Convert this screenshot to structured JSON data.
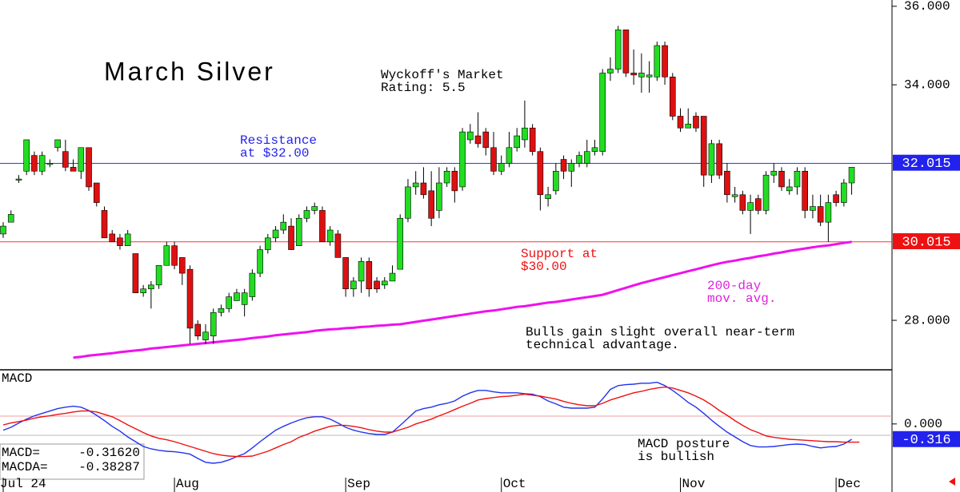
{
  "chart_data": [
    {
      "type": "candlestick",
      "categories": [
        "Jul 24",
        null,
        null,
        null,
        null,
        null,
        null,
        null,
        null,
        null,
        null,
        null,
        null,
        null,
        null,
        null,
        null,
        null,
        null,
        null,
        null,
        null,
        "Aug",
        null,
        null,
        null,
        null,
        null,
        null,
        null,
        null,
        null,
        null,
        null,
        null,
        null,
        null,
        null,
        null,
        null,
        null,
        null,
        null,
        null,
        "Sep",
        null,
        null,
        null,
        null,
        null,
        null,
        null,
        null,
        null,
        null,
        null,
        null,
        null,
        null,
        null,
        null,
        null,
        null,
        null,
        "Oct",
        null,
        null,
        null,
        null,
        null,
        null,
        null,
        null,
        null,
        null,
        null,
        null,
        null,
        null,
        null,
        null,
        null,
        null,
        null,
        null,
        null,
        null,
        "Nov",
        null,
        null,
        null,
        null,
        null,
        null,
        null,
        null,
        null,
        null,
        null,
        null,
        null,
        null,
        null,
        null,
        null,
        null,
        null,
        "Dec",
        null,
        null
      ],
      "ohlc": [
        [
          30.2,
          30.5,
          30.1,
          30.4
        ],
        [
          30.5,
          30.8,
          30.5,
          30.7
        ],
        [
          31.6,
          31.7,
          31.5,
          31.6
        ],
        [
          31.8,
          32.6,
          31.7,
          32.6
        ],
        [
          32.2,
          32.3,
          31.7,
          31.8
        ],
        [
          31.8,
          32.3,
          31.7,
          32.2
        ],
        [
          32.0,
          32.1,
          31.9,
          32.0
        ],
        [
          32.4,
          32.6,
          32.3,
          32.6
        ],
        [
          32.3,
          32.6,
          31.8,
          31.9
        ],
        [
          31.9,
          32.1,
          31.8,
          31.8
        ],
        [
          31.8,
          32.4,
          31.6,
          32.4
        ],
        [
          32.4,
          32.4,
          31.3,
          31.4
        ],
        [
          31.5,
          31.5,
          30.9,
          31.0
        ],
        [
          30.8,
          30.9,
          30.1,
          30.1
        ],
        [
          30.2,
          30.3,
          30.0,
          30.0
        ],
        [
          30.1,
          30.2,
          29.8,
          29.9
        ],
        [
          29.9,
          30.3,
          29.9,
          30.2
        ],
        [
          29.7,
          29.7,
          28.7,
          28.7
        ],
        [
          28.7,
          28.9,
          28.6,
          28.8
        ],
        [
          28.8,
          29.0,
          28.3,
          28.9
        ],
        [
          28.9,
          29.4,
          28.8,
          29.4
        ],
        [
          29.4,
          30.0,
          29.4,
          29.9
        ],
        [
          29.9,
          30.0,
          29.3,
          29.4
        ],
        [
          29.6,
          29.6,
          28.9,
          29.2
        ],
        [
          29.3,
          29.4,
          27.4,
          27.8
        ],
        [
          27.9,
          28.0,
          27.5,
          27.6
        ],
        [
          27.5,
          27.9,
          27.4,
          27.7
        ],
        [
          27.6,
          28.3,
          27.4,
          28.2
        ],
        [
          28.2,
          28.4,
          28.1,
          28.3
        ],
        [
          28.3,
          28.7,
          28.2,
          28.6
        ],
        [
          28.5,
          28.8,
          28.5,
          28.7
        ],
        [
          28.4,
          28.8,
          28.1,
          28.7
        ],
        [
          28.6,
          29.3,
          28.5,
          29.2
        ],
        [
          29.2,
          29.9,
          29.1,
          29.8
        ],
        [
          29.8,
          30.2,
          29.7,
          30.1
        ],
        [
          30.1,
          30.4,
          30.0,
          30.3
        ],
        [
          30.3,
          30.7,
          30.2,
          30.5
        ],
        [
          30.4,
          30.6,
          29.8,
          29.8
        ],
        [
          29.9,
          30.7,
          29.9,
          30.6
        ],
        [
          30.6,
          30.9,
          30.5,
          30.8
        ],
        [
          30.8,
          31.0,
          30.7,
          30.9
        ],
        [
          30.8,
          30.9,
          30.0,
          30.0
        ],
        [
          30.0,
          30.4,
          29.9,
          30.3
        ],
        [
          30.2,
          30.3,
          29.6,
          29.6
        ],
        [
          29.6,
          29.6,
          28.6,
          28.8
        ],
        [
          28.8,
          29.1,
          28.6,
          29.0
        ],
        [
          29.0,
          29.6,
          28.7,
          29.5
        ],
        [
          29.5,
          29.6,
          28.6,
          28.8
        ],
        [
          29.0,
          29.1,
          28.7,
          28.8
        ],
        [
          28.9,
          29.1,
          28.8,
          29.0
        ],
        [
          29.0,
          29.4,
          29.0,
          29.2
        ],
        [
          29.3,
          30.7,
          29.3,
          30.6
        ],
        [
          30.6,
          31.6,
          30.5,
          31.4
        ],
        [
          31.4,
          31.8,
          31.2,
          31.5
        ],
        [
          31.5,
          31.9,
          31.1,
          31.2
        ],
        [
          31.3,
          31.8,
          30.4,
          30.6
        ],
        [
          30.8,
          31.9,
          30.6,
          31.5
        ],
        [
          31.5,
          31.9,
          31.4,
          31.8
        ],
        [
          31.8,
          31.9,
          31.0,
          31.3
        ],
        [
          31.4,
          32.9,
          31.3,
          32.8
        ],
        [
          32.6,
          33.0,
          32.5,
          32.8
        ],
        [
          32.7,
          33.3,
          32.4,
          32.5
        ],
        [
          32.8,
          32.9,
          32.2,
          32.4
        ],
        [
          32.4,
          32.8,
          31.7,
          31.8
        ],
        [
          31.8,
          32.2,
          31.7,
          32.0
        ],
        [
          32.0,
          32.8,
          31.9,
          32.4
        ],
        [
          32.4,
          32.9,
          32.3,
          32.7
        ],
        [
          32.6,
          33.6,
          32.4,
          32.9
        ],
        [
          32.9,
          33.0,
          32.2,
          32.3
        ],
        [
          32.3,
          32.4,
          30.8,
          31.2
        ],
        [
          31.1,
          31.4,
          30.9,
          31.2
        ],
        [
          31.3,
          32.0,
          31.2,
          31.8
        ],
        [
          32.1,
          32.2,
          31.6,
          31.8
        ],
        [
          31.8,
          32.1,
          31.4,
          32.0
        ],
        [
          32.0,
          32.3,
          31.9,
          32.2
        ],
        [
          32.0,
          32.6,
          31.9,
          32.3
        ],
        [
          32.3,
          32.6,
          32.2,
          32.4
        ],
        [
          32.3,
          34.4,
          32.2,
          34.3
        ],
        [
          34.3,
          34.7,
          34.1,
          34.4
        ],
        [
          34.4,
          35.5,
          34.3,
          35.4
        ],
        [
          35.4,
          35.4,
          34.2,
          34.3
        ],
        [
          34.3,
          34.9,
          34.0,
          34.25
        ],
        [
          34.2,
          34.8,
          33.8,
          34.3
        ],
        [
          34.2,
          34.6,
          33.8,
          34.25
        ],
        [
          34.2,
          35.1,
          34.1,
          35.0
        ],
        [
          35.0,
          35.1,
          34.0,
          34.2
        ],
        [
          34.2,
          34.3,
          33.1,
          33.2
        ],
        [
          33.2,
          33.4,
          32.8,
          32.9
        ],
        [
          32.9,
          33.4,
          32.9,
          33.0
        ],
        [
          33.2,
          33.3,
          32.8,
          32.9
        ],
        [
          33.2,
          33.2,
          31.4,
          31.7
        ],
        [
          31.7,
          32.6,
          31.5,
          32.5
        ],
        [
          32.5,
          32.6,
          31.6,
          31.7
        ],
        [
          31.8,
          32.0,
          31.0,
          31.2
        ],
        [
          31.15,
          31.4,
          31.0,
          31.2
        ],
        [
          31.2,
          31.3,
          30.7,
          30.8
        ],
        [
          30.8,
          31.2,
          30.2,
          31.0
        ],
        [
          31.1,
          31.2,
          30.7,
          30.8
        ],
        [
          30.8,
          31.8,
          30.7,
          31.7
        ],
        [
          31.7,
          32.0,
          31.5,
          31.8
        ],
        [
          31.8,
          31.9,
          31.3,
          31.4
        ],
        [
          31.3,
          31.6,
          31.2,
          31.4
        ],
        [
          31.4,
          31.9,
          31.2,
          31.8
        ],
        [
          31.8,
          31.9,
          30.6,
          30.8
        ],
        [
          30.8,
          31.2,
          30.6,
          30.9
        ],
        [
          30.9,
          31.2,
          30.4,
          30.5
        ],
        [
          30.5,
          31.2,
          30.0,
          31.0
        ],
        [
          31.2,
          31.3,
          30.9,
          31.0
        ],
        [
          31.0,
          31.6,
          30.9,
          31.5
        ],
        [
          31.5,
          31.9,
          31.2,
          31.9
        ]
      ],
      "up_color": "#22dd22",
      "down_color": "#dd1111",
      "overlays": [
        {
          "color": "#ee11ee",
          "values": [
            null,
            null,
            null,
            null,
            null,
            null,
            null,
            null,
            null,
            27.05,
            27.07,
            27.1,
            27.12,
            27.14,
            27.16,
            27.19,
            27.21,
            27.23,
            27.25,
            27.28,
            27.3,
            27.32,
            27.34,
            27.36,
            27.38,
            27.4,
            27.42,
            27.44,
            27.46,
            27.48,
            27.5,
            27.52,
            27.55,
            27.57,
            27.59,
            27.62,
            27.64,
            27.66,
            27.68,
            27.7,
            27.73,
            27.75,
            27.77,
            27.78,
            27.8,
            27.81,
            27.83,
            27.84,
            27.86,
            27.87,
            27.89,
            27.9,
            27.93,
            27.96,
            27.99,
            28.02,
            28.05,
            28.08,
            28.11,
            28.14,
            28.17,
            28.2,
            28.23,
            28.25,
            28.28,
            28.31,
            28.34,
            28.36,
            28.39,
            28.42,
            28.45,
            28.47,
            28.5,
            28.53,
            28.56,
            28.59,
            28.62,
            28.65,
            28.71,
            28.77,
            28.83,
            28.89,
            28.95,
            29.0,
            29.05,
            29.1,
            29.15,
            29.2,
            29.25,
            29.3,
            29.35,
            29.4,
            29.45,
            29.49,
            29.52,
            29.56,
            29.59,
            29.63,
            29.66,
            29.7,
            29.73,
            29.77,
            29.8,
            29.83,
            29.86,
            29.89,
            29.91,
            29.94,
            29.97,
            30.0
          ]
        }
      ],
      "hlines": [
        {
          "value": 32,
          "color": "#3333ff"
        },
        {
          "value": 30,
          "color": "#ff3333"
        }
      ],
      "price_labels": [
        {
          "value": 32.015,
          "color": "#2222ee"
        },
        {
          "value": 30.015,
          "color": "#ee1111"
        }
      ],
      "ylim": [
        26.76,
        36.16
      ],
      "yticks": [
        {
          "value": 28,
          "label": "28.000"
        },
        {
          "value": 34,
          "label": "34.000"
        },
        {
          "value": 36,
          "label": "36.000"
        }
      ],
      "title": "March Silver",
      "annotations": [
        {
          "lines": [
            "Wyckoff's Market",
            "Rating: 5.5"
          ],
          "color": "#000000"
        },
        {
          "lines": [
            "Resistance",
            "at $32.00"
          ],
          "color": "#2222ee"
        },
        {
          "lines": [
            "Support at",
            "$30.00"
          ],
          "color": "#ee1111"
        },
        {
          "lines": [
            "200-day",
            "mov. avg."
          ],
          "color": "#dd22dd"
        },
        {
          "lines": [
            "Bulls gain slight overall near-term",
            "technical advantage."
          ],
          "color": "#000000"
        }
      ]
    },
    {
      "type": "line",
      "title": "MACD",
      "series": [
        {
          "name": "MACD=",
          "last_label": "-0.31620",
          "color": "#2233ee",
          "values": [
            -0.13,
            -0.07,
            0.02,
            0.1,
            0.17,
            0.22,
            0.27,
            0.32,
            0.35,
            0.37,
            0.35,
            0.28,
            0.18,
            0.07,
            -0.05,
            -0.15,
            -0.27,
            -0.37,
            -0.47,
            -0.52,
            -0.55,
            -0.57,
            -0.58,
            -0.6,
            -0.63,
            -0.72,
            -0.8,
            -0.82,
            -0.8,
            -0.75,
            -0.68,
            -0.62,
            -0.5,
            -0.37,
            -0.25,
            -0.13,
            -0.05,
            0.02,
            0.08,
            0.13,
            0.15,
            0.15,
            0.1,
            0.02,
            -0.07,
            -0.13,
            -0.17,
            -0.2,
            -0.22,
            -0.22,
            -0.17,
            -0.03,
            0.12,
            0.27,
            0.32,
            0.35,
            0.4,
            0.43,
            0.48,
            0.58,
            0.65,
            0.7,
            0.7,
            0.67,
            0.65,
            0.65,
            0.65,
            0.63,
            0.62,
            0.57,
            0.48,
            0.42,
            0.35,
            0.33,
            0.33,
            0.33,
            0.35,
            0.52,
            0.72,
            0.8,
            0.82,
            0.83,
            0.85,
            0.85,
            0.87,
            0.8,
            0.7,
            0.58,
            0.45,
            0.35,
            0.22,
            0.08,
            -0.05,
            -0.17,
            -0.27,
            -0.37,
            -0.45,
            -0.48,
            -0.48,
            -0.47,
            -0.45,
            -0.43,
            -0.42,
            -0.43,
            -0.47,
            -0.5,
            -0.48,
            -0.47,
            -0.42,
            -0.32
          ]
        },
        {
          "name": "MACDA=",
          "last_label": "-0.38287",
          "color": "#ee1111",
          "values": [
            -0.02,
            0.02,
            0.05,
            0.08,
            0.12,
            0.15,
            0.17,
            0.2,
            0.22,
            0.25,
            0.27,
            0.27,
            0.25,
            0.2,
            0.15,
            0.07,
            -0.02,
            -0.1,
            -0.18,
            -0.25,
            -0.3,
            -0.33,
            -0.37,
            -0.42,
            -0.47,
            -0.52,
            -0.57,
            -0.62,
            -0.65,
            -0.67,
            -0.68,
            -0.68,
            -0.67,
            -0.62,
            -0.57,
            -0.5,
            -0.43,
            -0.37,
            -0.28,
            -0.22,
            -0.15,
            -0.1,
            -0.05,
            -0.03,
            -0.03,
            -0.05,
            -0.08,
            -0.12,
            -0.15,
            -0.17,
            -0.17,
            -0.12,
            -0.07,
            0,
            0.05,
            0.1,
            0.17,
            0.23,
            0.3,
            0.37,
            0.43,
            0.5,
            0.53,
            0.55,
            0.57,
            0.58,
            0.6,
            0.62,
            0.6,
            0.58,
            0.55,
            0.52,
            0.47,
            0.43,
            0.4,
            0.38,
            0.38,
            0.43,
            0.5,
            0.55,
            0.6,
            0.65,
            0.68,
            0.72,
            0.75,
            0.77,
            0.75,
            0.7,
            0.65,
            0.58,
            0.5,
            0.4,
            0.28,
            0.18,
            0.07,
            -0.03,
            -0.12,
            -0.18,
            -0.25,
            -0.28,
            -0.3,
            -0.32,
            -0.33,
            -0.34,
            -0.35,
            -0.36,
            -0.37,
            -0.37,
            -0.38,
            -0.38,
            -0.38
          ]
        }
      ],
      "ylim": [
        -1.42,
        1.13
      ],
      "yticks": [
        {
          "value": 0,
          "label": "0.000"
        }
      ],
      "price_labels": [
        {
          "value": -0.316,
          "color": "#2222ee"
        }
      ],
      "annotations": [
        {
          "lines": [
            "MACD posture",
            "is bullish"
          ],
          "color": "#000000"
        }
      ]
    }
  ]
}
